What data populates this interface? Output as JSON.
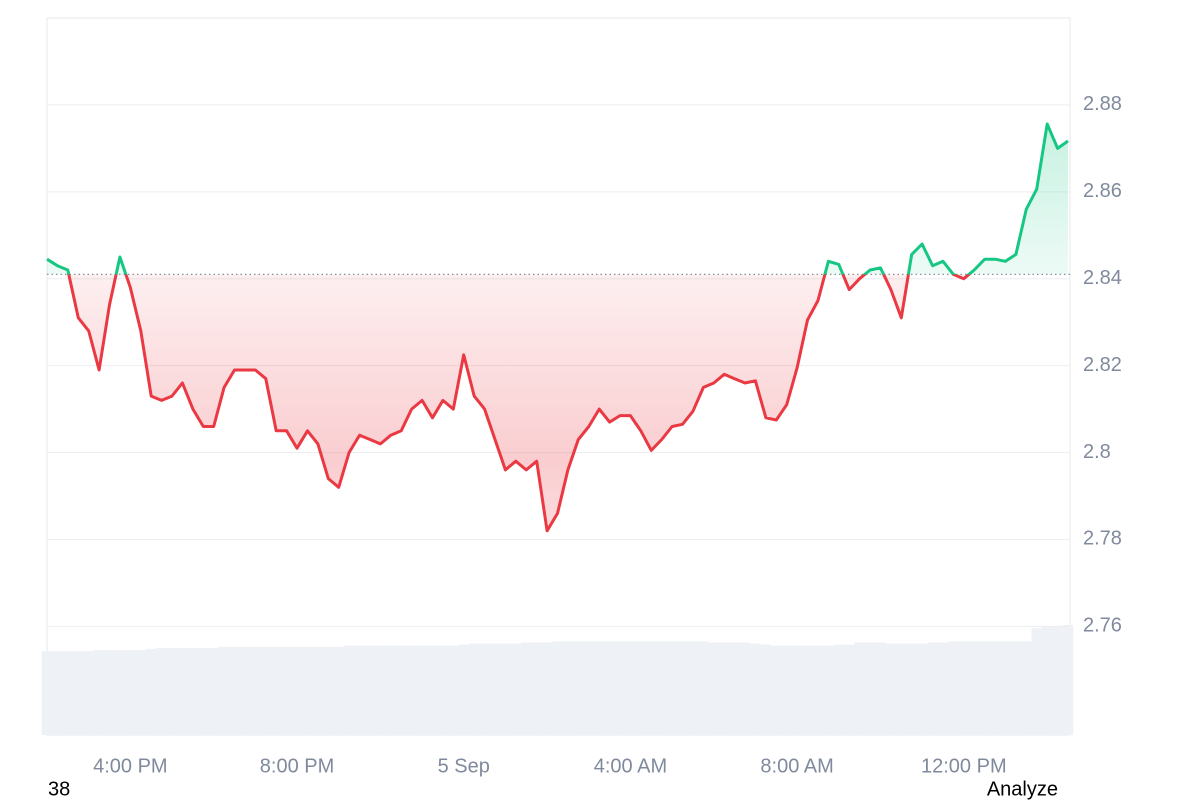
{
  "chart_data": {
    "type": "baseline-line",
    "baseline": 2.841,
    "up_color": "#16c784",
    "down_color": "#ea3943",
    "volume_color": "#eef1f5",
    "ylim": [
      2.735,
      2.9
    ],
    "yticks": [
      2.76,
      2.78,
      2.8,
      2.82,
      2.84,
      2.86,
      2.88
    ],
    "grid": true,
    "categories": [
      null,
      null,
      null,
      null,
      null,
      null,
      null,
      null,
      "4:00 PM",
      null,
      null,
      null,
      null,
      null,
      null,
      null,
      null,
      null,
      null,
      null,
      null,
      null,
      null,
      null,
      "8:00 PM",
      null,
      null,
      null,
      null,
      null,
      null,
      null,
      null,
      null,
      null,
      null,
      null,
      null,
      null,
      null,
      "5 Sep",
      null,
      null,
      null,
      null,
      null,
      null,
      null,
      null,
      null,
      null,
      null,
      null,
      null,
      null,
      null,
      "4:00 AM",
      null,
      null,
      null,
      null,
      null,
      null,
      null,
      null,
      null,
      null,
      null,
      null,
      null,
      null,
      null,
      "8:00 AM",
      null,
      null,
      null,
      null,
      null,
      null,
      null,
      null,
      null,
      null,
      null,
      null,
      null,
      null,
      null,
      "12:00 PM",
      null,
      null,
      null,
      null,
      null,
      null,
      null,
      null,
      null,
      null
    ],
    "values": [
      2.8445,
      2.843,
      2.842,
      2.831,
      2.828,
      2.819,
      2.834,
      2.845,
      2.838,
      2.828,
      2.813,
      2.812,
      2.813,
      2.816,
      2.81,
      2.806,
      2.806,
      2.815,
      2.819,
      2.819,
      2.819,
      2.817,
      2.805,
      2.805,
      2.801,
      2.805,
      2.802,
      2.794,
      2.792,
      2.8,
      2.804,
      2.803,
      2.802,
      2.804,
      2.805,
      2.81,
      2.812,
      2.808,
      2.812,
      2.81,
      2.8225,
      2.813,
      2.81,
      2.803,
      2.796,
      2.798,
      2.796,
      2.798,
      2.782,
      2.786,
      2.796,
      2.803,
      2.806,
      2.81,
      2.807,
      2.8085,
      2.8085,
      2.805,
      2.8005,
      2.803,
      2.806,
      2.8065,
      2.8095,
      2.815,
      2.816,
      2.818,
      2.817,
      2.816,
      2.8165,
      2.808,
      2.8075,
      2.811,
      2.8195,
      2.8305,
      2.835,
      2.844,
      2.8433,
      2.8375,
      2.84,
      2.842,
      2.8425,
      2.8375,
      2.831,
      2.8456,
      2.848,
      2.843,
      2.844,
      2.841,
      2.84,
      2.842,
      2.8445,
      2.8445,
      2.844,
      2.8456,
      2.856,
      2.8606,
      2.8756,
      2.87,
      2.8717
    ],
    "volumes": [
      77,
      77,
      77,
      77,
      77,
      78,
      78,
      78,
      78,
      78,
      79,
      80,
      80,
      80,
      80,
      80,
      80,
      81,
      81,
      81,
      81,
      81,
      81,
      81,
      81,
      81,
      81,
      81,
      81,
      82,
      82,
      82,
      82,
      82,
      82,
      82,
      82,
      82,
      82,
      82,
      83,
      84,
      84,
      84,
      84,
      84,
      85,
      85,
      85,
      86,
      86,
      86,
      86,
      86,
      86,
      86,
      86,
      86,
      86,
      86,
      86,
      86,
      86,
      86,
      85,
      85,
      85,
      85,
      84,
      83,
      82,
      82,
      82,
      82,
      82,
      82,
      83,
      83,
      85,
      85,
      85,
      84,
      84,
      84,
      84,
      85,
      85,
      86,
      86,
      86,
      86,
      86,
      86,
      86,
      86,
      98,
      100,
      100,
      101
    ]
  },
  "footer": {
    "left": "38",
    "right": "Analyze"
  }
}
